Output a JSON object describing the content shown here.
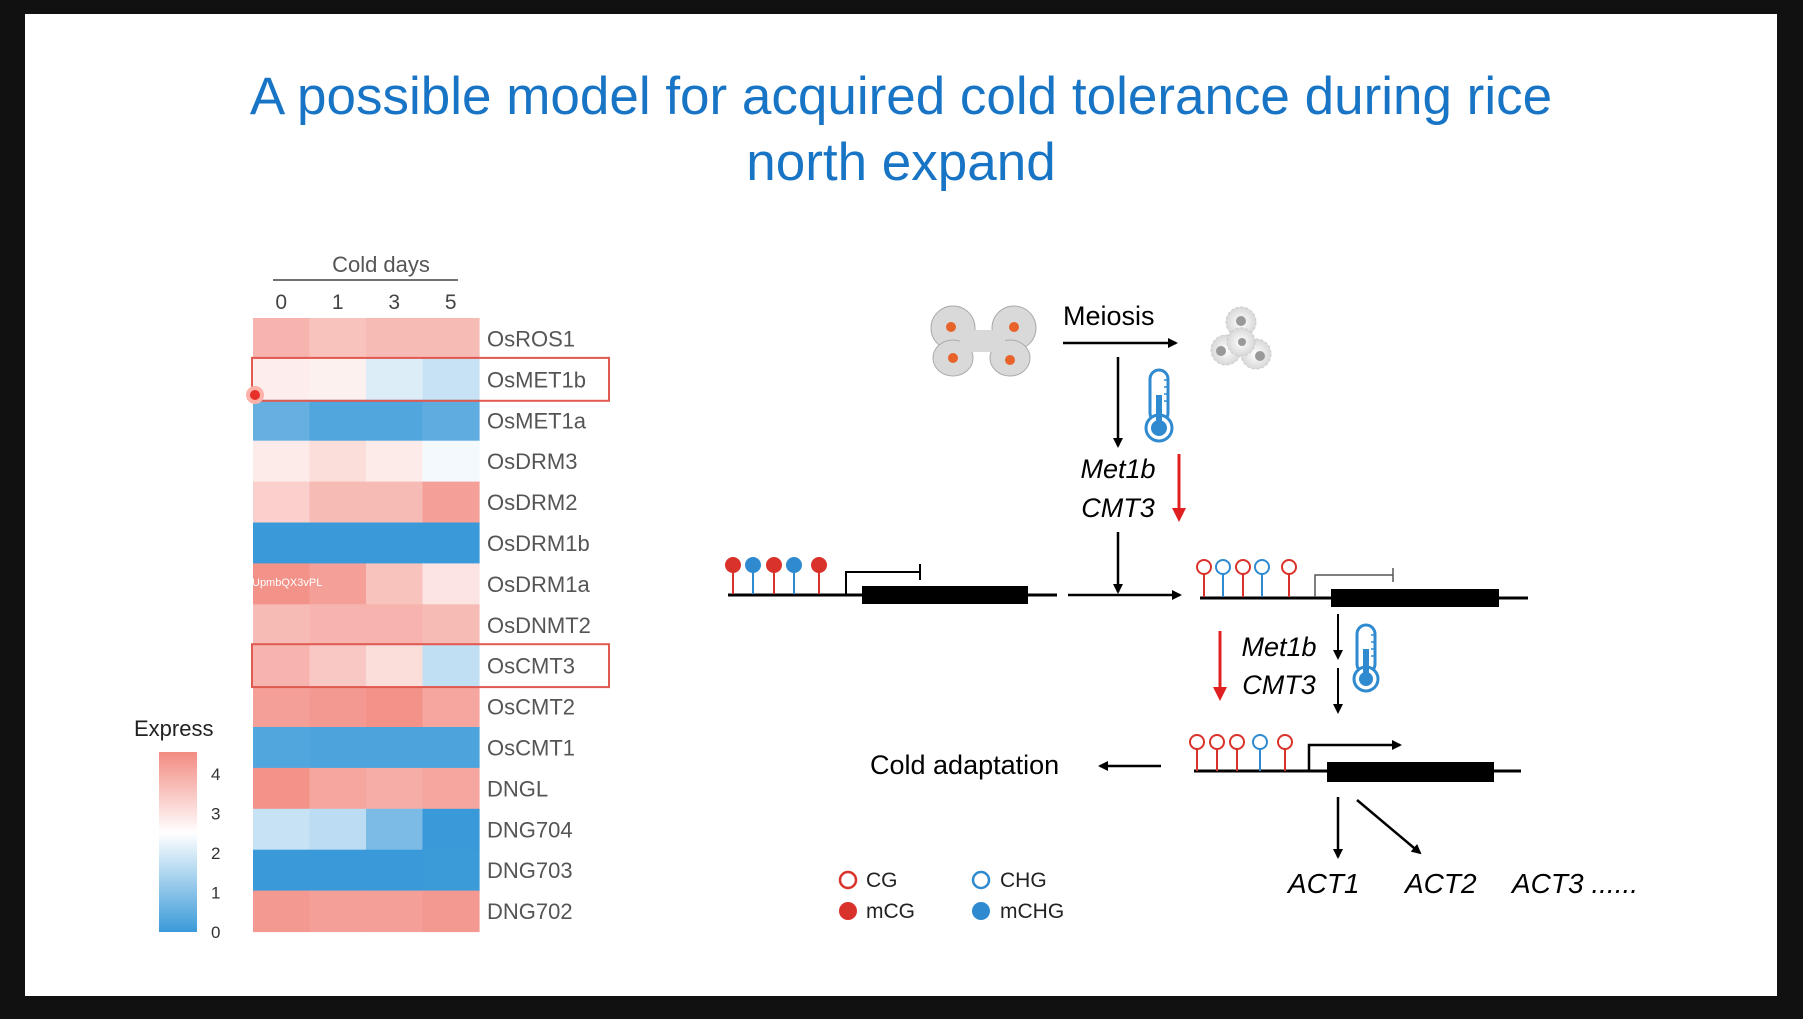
{
  "title": {
    "line1": "A possible model for acquired cold tolerance during rice",
    "line2": "north expand"
  },
  "heatmap": {
    "header": "Cold days",
    "columns": [
      "0",
      "1",
      "3",
      "5"
    ],
    "watermark": "UpmbQX3vPL",
    "legend_title": "Express",
    "legend_ticks": [
      "4",
      "3",
      "2",
      "1",
      "0"
    ],
    "highlighted_genes": [
      "OsMET1b",
      "OsCMT3"
    ],
    "colors": {
      "high": "#f28b82",
      "mid": "#ffffff",
      "low": "#3a9ad9",
      "highlight_box": "#e05a52"
    },
    "rows": [
      {
        "gene": "OsROS1",
        "values": [
          3.7,
          3.5,
          3.6,
          3.6
        ]
      },
      {
        "gene": "OsMET1b",
        "values": [
          2.85,
          2.8,
          2.3,
          2.1
        ]
      },
      {
        "gene": "OsMET1a",
        "values": [
          1.0,
          0.7,
          0.7,
          0.9
        ]
      },
      {
        "gene": "OsDRM3",
        "values": [
          2.9,
          3.1,
          2.9,
          2.5
        ]
      },
      {
        "gene": "OsDRM2",
        "values": [
          3.3,
          3.6,
          3.6,
          4.0
        ]
      },
      {
        "gene": "OsDRM1b",
        "values": [
          0.0,
          0.0,
          0.0,
          0.0
        ]
      },
      {
        "gene": "OsDRM1a",
        "values": [
          4.2,
          4.0,
          3.5,
          3.0
        ]
      },
      {
        "gene": "OsDNMT2",
        "values": [
          3.6,
          3.7,
          3.7,
          3.6
        ]
      },
      {
        "gene": "OsCMT3",
        "values": [
          3.7,
          3.4,
          3.1,
          2.05
        ]
      },
      {
        "gene": "OsCMT2",
        "values": [
          4.0,
          4.1,
          4.2,
          3.9
        ]
      },
      {
        "gene": "OsCMT1",
        "values": [
          0.7,
          0.6,
          0.6,
          0.6
        ]
      },
      {
        "gene": "DNGL",
        "values": [
          4.2,
          3.9,
          3.8,
          3.9
        ]
      },
      {
        "gene": "DNG704",
        "values": [
          2.1,
          2.0,
          1.3,
          0.0
        ]
      },
      {
        "gene": "DNG703",
        "values": [
          0.0,
          0.0,
          0.0,
          0.1
        ]
      },
      {
        "gene": "DNG702",
        "values": [
          4.1,
          4.0,
          4.0,
          4.1
        ]
      }
    ]
  },
  "model": {
    "meiosis": "Meiosis",
    "met1b_top": "Met1b",
    "cmt3_top": "CMT3",
    "met1b_mid": "Met1b",
    "cmt3_mid": "CMT3",
    "cold_adaptation": "Cold adaptation",
    "act1": "ACT1",
    "act2": "ACT2",
    "act3": "ACT3 ......",
    "legend": {
      "cg": "CG",
      "chg": "CHG",
      "mcg": "mCG",
      "mchg": "mCHG"
    },
    "colors": {
      "red": "#d9322a",
      "blue": "#2f8ad0",
      "arrow_red": "#e02020"
    }
  }
}
